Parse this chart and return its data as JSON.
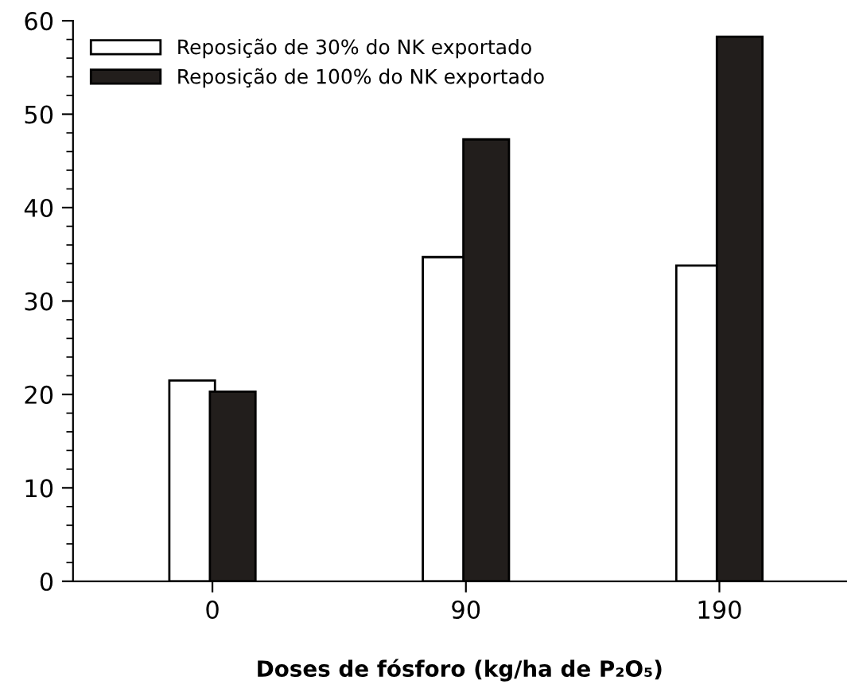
{
  "chart_data": {
    "type": "bar",
    "xlabel": "Doses de fósforo (kg/ha de P₂O₅)",
    "categories": [
      "0",
      "90",
      "190"
    ],
    "series": [
      {
        "name": "Reposição de 30% do NK exportado",
        "color": "#ffffff",
        "values": [
          21.5,
          34.7,
          33.8
        ]
      },
      {
        "name": "Reposição de 100% do NK exportado",
        "color": "#221e1c",
        "values": [
          20.3,
          47.3,
          58.3
        ]
      }
    ],
    "ylim": [
      0,
      60
    ],
    "yticks": [
      0,
      10,
      20,
      30,
      40,
      50,
      60
    ],
    "grid": false,
    "legend": "top left"
  }
}
